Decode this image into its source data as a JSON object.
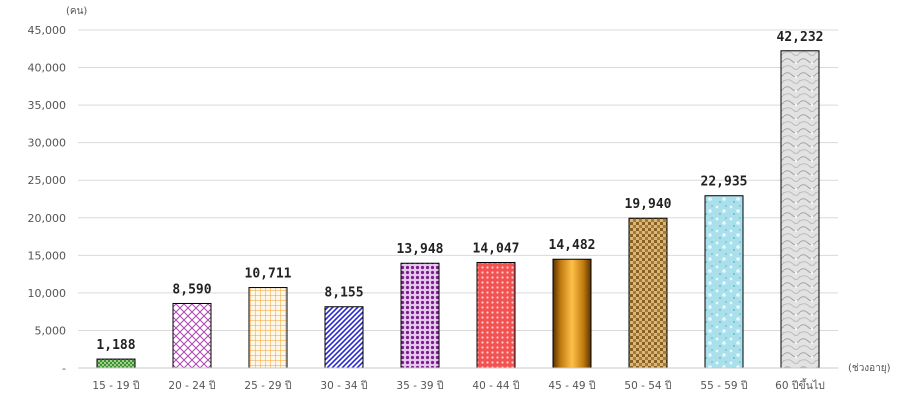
{
  "chart_data": {
    "type": "bar",
    "title": "",
    "xlabel": "(ช่วงอายุ)",
    "ylabel": "(คน)",
    "ylim": [
      0,
      45000
    ],
    "yticks": [
      0,
      5000,
      10000,
      15000,
      20000,
      25000,
      30000,
      35000,
      40000,
      45000
    ],
    "ytick_labels": [
      "-",
      "5,000",
      "10,000",
      "15,000",
      "20,000",
      "25,000",
      "30,000",
      "35,000",
      "40,000",
      "45,000"
    ],
    "grid": true,
    "legend": "none",
    "categories": [
      "15 - 19 ปี",
      "20 - 24 ปี",
      "25 - 29 ปี",
      "30 - 34 ปี",
      "35 - 39 ปี",
      "40 - 44 ปี",
      "45 - 49 ปี",
      "50 - 54 ปี",
      "55 - 59 ปี",
      "60 ปีขึ้นไป"
    ],
    "values": [
      1188,
      8590,
      10711,
      8155,
      13948,
      14047,
      14482,
      19940,
      22935,
      42232
    ],
    "value_labels": [
      "1,188",
      "8,590",
      "10,711",
      "8,155",
      "13,948",
      "14,047",
      "14,482",
      "19,940",
      "22,935",
      "42,232"
    ],
    "bar_patterns": [
      "green-checker",
      "purple-diamond",
      "orange-grid",
      "blue-diagonal",
      "purple-dots",
      "red-dots",
      "gold-gradient",
      "brown-weave",
      "cyan-speckle",
      "gray-marble"
    ]
  }
}
